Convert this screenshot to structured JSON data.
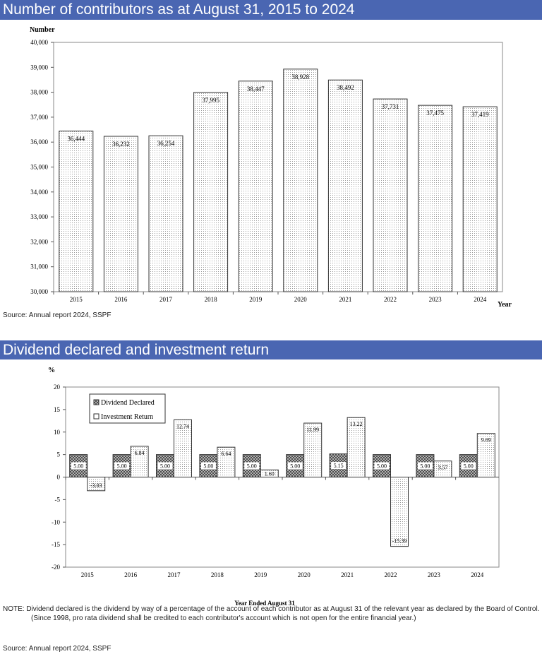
{
  "section1_title": "Number of contributors as at August 31, 2015 to 2024",
  "section2_title": "Dividend declared and investment return",
  "source1": "Source: Annual report 2024, SSPF",
  "source2": "Source: Annual report 2024, SSPF",
  "note_line1": "NOTE: Dividend declared is the dividend by way of a percentage of the account of each contributor as at August 31 of the relevant year as declared by the Board of Control.",
  "note_line2": "(Since 1998, pro rata dividend shall be credited to each contributor's account which is not open for the entire financial year.)",
  "chart_data": [
    {
      "type": "bar",
      "title": "",
      "ylabel": "Number",
      "xlabel": "Year",
      "ylim": [
        30000,
        40000
      ],
      "yticks": [
        30000,
        31000,
        32000,
        33000,
        34000,
        35000,
        36000,
        37000,
        38000,
        39000,
        40000
      ],
      "categories": [
        "2015",
        "2016",
        "2017",
        "2018",
        "2019",
        "2020",
        "2021",
        "2022",
        "2023",
        "2024"
      ],
      "values": [
        36444,
        36232,
        36254,
        37995,
        38447,
        38928,
        38492,
        37731,
        37475,
        37419
      ],
      "labels": [
        "36,444",
        "36,232",
        "36,254",
        "37,995",
        "38,447",
        "38,928",
        "38,492",
        "37,731",
        "37,475",
        "37,419"
      ],
      "grid": false
    },
    {
      "type": "bar",
      "title": "",
      "ylabel": "%",
      "xlabel": "Year Ended August 31",
      "ylim": [
        -20,
        20
      ],
      "yticks": [
        -20,
        -15,
        -10,
        -5,
        0,
        5,
        10,
        15,
        20
      ],
      "categories": [
        "2015",
        "2016",
        "2017",
        "2018",
        "2019",
        "2020",
        "2021",
        "2022",
        "2023",
        "2024"
      ],
      "series": [
        {
          "name": "Dividend Declared",
          "values": [
            5.0,
            5.0,
            5.0,
            5.0,
            5.0,
            5.0,
            5.15,
            5.0,
            5.0,
            5.0
          ],
          "labels": [
            "5.00",
            "5.00",
            "5.00",
            "5.00",
            "5.00",
            "5.00",
            "5.15",
            "5.00",
            "5.00",
            "5.00"
          ]
        },
        {
          "name": "Investment Return",
          "values": [
            -3.03,
            6.84,
            12.74,
            6.64,
            1.6,
            11.99,
            13.22,
            -15.39,
            3.57,
            9.69
          ],
          "labels": [
            "-3.03",
            "6.84",
            "12.74",
            "6.64",
            "1.60",
            "11.99",
            "13.22",
            "-15.39",
            "3.57",
            "9.69"
          ]
        }
      ],
      "legend": "top-left",
      "grid": false
    }
  ]
}
